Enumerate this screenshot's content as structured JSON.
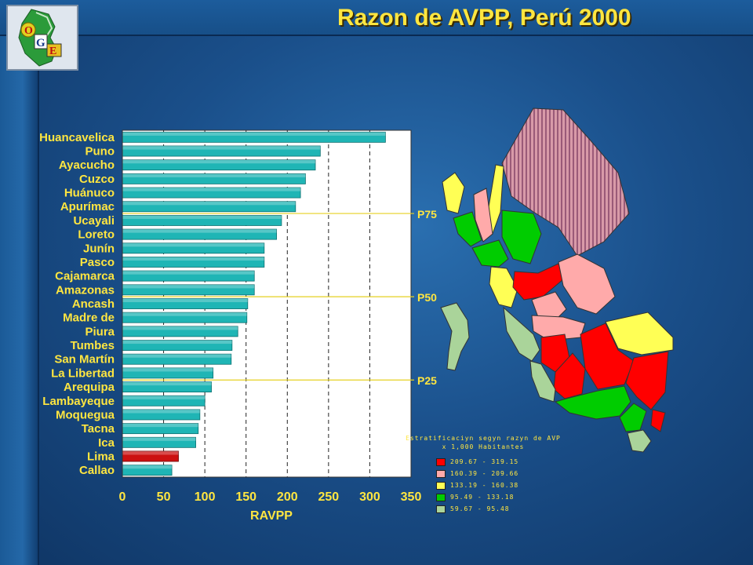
{
  "header": {
    "title": "Razon de AVPP, Perú 2000"
  },
  "colors": {
    "bar": "#1fb5b5",
    "bar_highlight": "#cc1111",
    "axis_text": "#ffe640",
    "map_red": "#ff0000",
    "map_pink": "#ffaaaa",
    "map_yellow": "#ffff55",
    "map_green": "#00cc00",
    "map_lightgreen": "#aad49a",
    "map_striped": "#c8869a"
  },
  "chart_data": {
    "type": "bar",
    "orientation": "horizontal",
    "categories": [
      "Huancavelica",
      "Puno",
      "Ayacucho",
      "Cuzco",
      "Huánuco",
      "Apurímac",
      "Ucayali",
      "Loreto",
      "Junín",
      "Pasco",
      "Cajamarca",
      "Amazonas",
      "Ancash",
      "Madre de",
      "Piura",
      "Tumbes",
      "San Martín",
      "La Libertad",
      "Arequipa",
      "Lambayeque",
      "Moquegua",
      "Tacna",
      "Ica",
      "Lima",
      "Callao"
    ],
    "values": [
      319,
      240,
      234,
      222,
      216,
      210,
      193,
      187,
      172,
      172,
      160,
      160,
      152,
      151,
      140,
      133,
      132,
      110,
      108,
      100,
      94,
      92,
      89,
      68,
      60
    ],
    "highlight": [
      "Lima"
    ],
    "xlabel": "RAVPP",
    "xlim": [
      0,
      350
    ],
    "xticks": [
      0,
      50,
      100,
      150,
      200,
      250,
      300,
      350
    ],
    "reference_lines": [
      {
        "label": "P75",
        "after_index": 5
      },
      {
        "label": "P50",
        "after_index": 11
      },
      {
        "label": "P25",
        "after_index": 17
      }
    ],
    "grid": "vertical dashed"
  },
  "legend": {
    "title_line1": "Estratificaciyn segyn razyn de AVP",
    "title_line2": "x 1,000 Habitantes",
    "items": [
      {
        "label": "209.67 - 319.15",
        "color": "#ff0000"
      },
      {
        "label": "160.39 - 209.66",
        "color": "#ffaaaa"
      },
      {
        "label": "133.19 - 160.38",
        "color": "#ffff55"
      },
      {
        "label": "95.49 - 133.18",
        "color": "#00cc00"
      },
      {
        "label": "59.67 - 95.48",
        "color": "#aad49a"
      }
    ]
  }
}
